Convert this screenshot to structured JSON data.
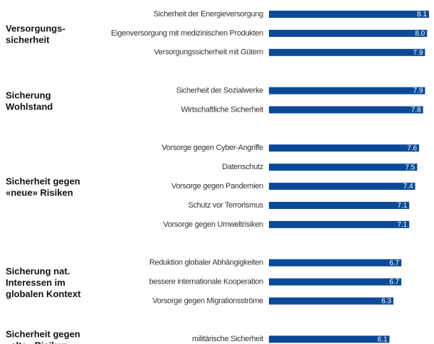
{
  "chart_data": {
    "type": "bar",
    "orientation": "horizontal",
    "color": "#0b4a97",
    "groups": [
      {
        "label": [
          "Versorgungs-",
          "sicherheit"
        ],
        "categories": [
          "Sicherheit der Energieversorgung",
          "Eigenversorgung mit medizinischen Produkten",
          "Versorgungssicherheit mit Gütern"
        ],
        "values": [
          8.1,
          8.0,
          7.9
        ],
        "value_labels": [
          "8.1",
          "8.0",
          "7.9"
        ]
      },
      {
        "label": [
          "Sicherung",
          "Wohlstand"
        ],
        "categories": [
          "Sicherheit der Sozialwerke",
          "Wirtschaftliche Sicherheit"
        ],
        "values": [
          7.9,
          7.8
        ],
        "value_labels": [
          "7.9",
          "7.8"
        ]
      },
      {
        "label": [
          "Sicherheit gegen",
          "«neue» Risiken"
        ],
        "categories": [
          "Vorsorge gegen Cyber-Angriffe",
          "Datenschutz",
          "Vorsorge gegen Pandemien",
          "Schutz vor Terrorismus",
          "Vorsorge gegen Umweltrisiken"
        ],
        "values": [
          7.6,
          7.5,
          7.4,
          7.1,
          7.1
        ],
        "value_labels": [
          "7.6",
          "7.5",
          "7.4",
          "7.1",
          "7.1"
        ]
      },
      {
        "label": [
          "Sicherung nat.",
          "Interessen im",
          "globalen Kontext"
        ],
        "categories": [
          "Reduktion globaler Abhängigkeiten",
          "bessere internationale Kooperation",
          "Vorsorge gegen Migrationsströme"
        ],
        "values": [
          6.7,
          6.7,
          6.3
        ],
        "value_labels": [
          "6.7",
          "6.7",
          "6.3"
        ]
      },
      {
        "label": [
          "Sicherheit gegen",
          "«alte» Risiken"
        ],
        "categories": [
          "militärische Sicherheit"
        ],
        "values": [
          6.1
        ],
        "value_labels": [
          "6.1"
        ]
      }
    ]
  }
}
